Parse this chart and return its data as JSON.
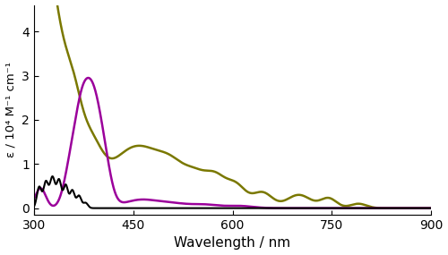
{
  "xlabel": "Wavelength / nm",
  "ylabel": "ε / 10⁴ M⁻¹ cm⁻¹",
  "xlim": [
    300,
    900
  ],
  "ylim": [
    -0.15,
    4.6
  ],
  "yticks": [
    0,
    1,
    2,
    3,
    4
  ],
  "xticks": [
    300,
    450,
    600,
    750,
    900
  ],
  "colors": {
    "black": "#000000",
    "purple": "#9B009B",
    "olive": "#7A7800"
  },
  "background_color": "#ffffff",
  "figsize": [
    5.0,
    2.85
  ],
  "dpi": 100
}
